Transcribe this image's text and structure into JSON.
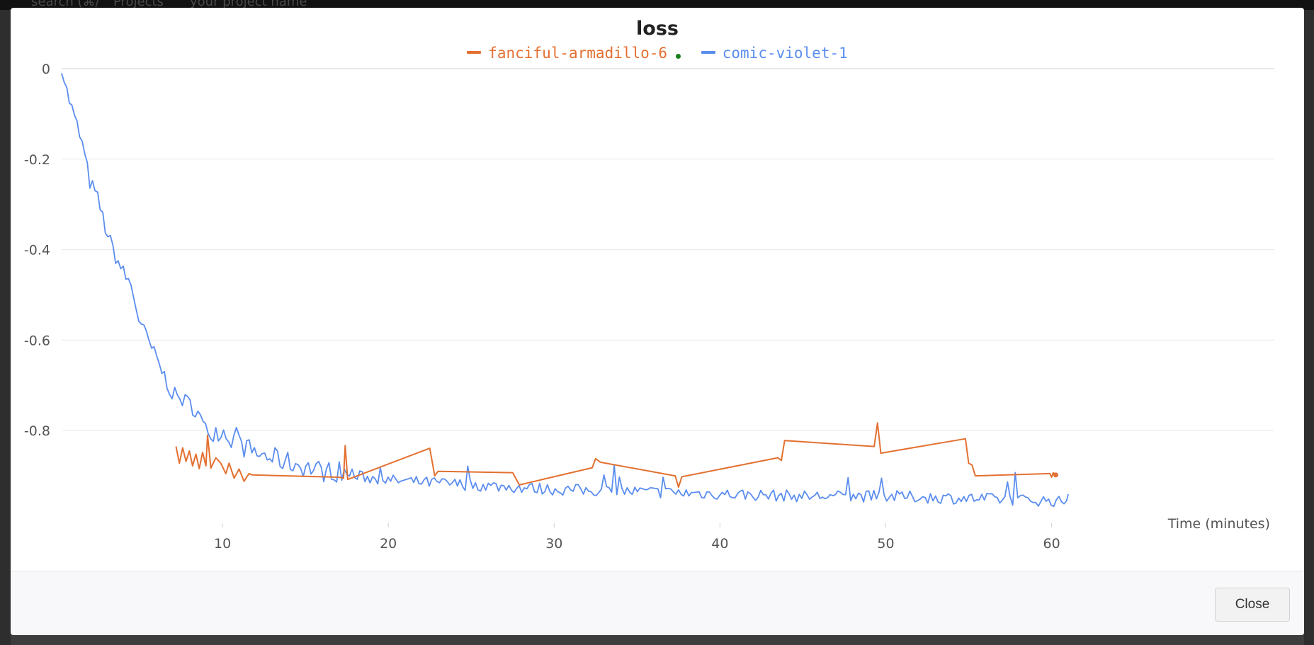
{
  "background_page": {
    "topbar_text": [
      "search (⌘/",
      "Projects",
      "your project name"
    ]
  },
  "dialog": {
    "close_label": "Close"
  },
  "colors": {
    "series_orange": "#e37030",
    "series_blue": "#5b8def",
    "live_dot": "#1a7f1a",
    "grid": "#ebebeb"
  },
  "chart_data": {
    "type": "line",
    "title": "loss",
    "xlabel": "Time (minutes)",
    "ylabel": "",
    "xlim": [
      0.3,
      61
    ],
    "ylim": [
      -1.0,
      0
    ],
    "xticks": [
      10,
      20,
      30,
      40,
      50,
      60
    ],
    "yticks": [
      0,
      -0.2,
      -0.4,
      -0.6,
      -0.8
    ],
    "grid": true,
    "legend_position": "top-center",
    "series": [
      {
        "name": "fanciful-armadillo-6",
        "color": "#e37030",
        "live": true,
        "points": [
          [
            7.2,
            -0.835
          ],
          [
            7.4,
            -0.872
          ],
          [
            7.6,
            -0.838
          ],
          [
            7.8,
            -0.868
          ],
          [
            8.0,
            -0.845
          ],
          [
            8.2,
            -0.878
          ],
          [
            8.4,
            -0.852
          ],
          [
            8.6,
            -0.884
          ],
          [
            8.8,
            -0.848
          ],
          [
            9.0,
            -0.878
          ],
          [
            9.1,
            -0.81
          ],
          [
            9.3,
            -0.883
          ],
          [
            9.6,
            -0.86
          ],
          [
            9.9,
            -0.872
          ],
          [
            10.2,
            -0.895
          ],
          [
            10.4,
            -0.872
          ],
          [
            10.7,
            -0.905
          ],
          [
            11.0,
            -0.885
          ],
          [
            11.3,
            -0.912
          ],
          [
            11.6,
            -0.895
          ],
          [
            11.8,
            -0.898
          ],
          [
            17.0,
            -0.903
          ],
          [
            17.3,
            -0.905
          ],
          [
            17.4,
            -0.833
          ],
          [
            17.55,
            -0.908
          ],
          [
            22.5,
            -0.839
          ],
          [
            22.8,
            -0.9
          ],
          [
            23.0,
            -0.89
          ],
          [
            27.5,
            -0.893
          ],
          [
            27.9,
            -0.92
          ],
          [
            32.3,
            -0.882
          ],
          [
            32.5,
            -0.862
          ],
          [
            32.8,
            -0.87
          ],
          [
            37.3,
            -0.9
          ],
          [
            37.5,
            -0.925
          ],
          [
            37.7,
            -0.902
          ],
          [
            43.5,
            -0.86
          ],
          [
            43.7,
            -0.866
          ],
          [
            43.9,
            -0.822
          ],
          [
            49.3,
            -0.835
          ],
          [
            49.5,
            -0.783
          ],
          [
            49.7,
            -0.85
          ],
          [
            54.8,
            -0.818
          ],
          [
            55.0,
            -0.872
          ],
          [
            55.2,
            -0.876
          ],
          [
            55.4,
            -0.9
          ],
          [
            59.9,
            -0.895
          ],
          [
            60.0,
            -0.903
          ],
          [
            60.1,
            -0.893
          ],
          [
            60.25,
            -0.898
          ]
        ]
      },
      {
        "name": "comic-violet-1",
        "color": "#5b8def",
        "live": false,
        "keypoints": [
          [
            0.3,
            -0.01
          ],
          [
            1.0,
            -0.1
          ],
          [
            1.5,
            -0.16
          ],
          [
            2.0,
            -0.25
          ],
          [
            2.5,
            -0.29
          ],
          [
            3.0,
            -0.36
          ],
          [
            3.5,
            -0.41
          ],
          [
            4.0,
            -0.45
          ],
          [
            4.5,
            -0.48
          ],
          [
            5.0,
            -0.56
          ],
          [
            6.0,
            -0.64
          ],
          [
            7.0,
            -0.72
          ],
          [
            8.0,
            -0.74
          ],
          [
            8.5,
            -0.76
          ],
          [
            9.0,
            -0.8
          ],
          [
            10.0,
            -0.8
          ],
          [
            11.0,
            -0.83
          ],
          [
            12.0,
            -0.85
          ],
          [
            13.0,
            -0.86
          ],
          [
            14.0,
            -0.87
          ],
          [
            15.0,
            -0.88
          ],
          [
            16.0,
            -0.89
          ],
          [
            17.0,
            -0.89
          ],
          [
            18.0,
            -0.9
          ],
          [
            20.0,
            -0.91
          ],
          [
            25.0,
            -0.92
          ],
          [
            30.0,
            -0.93
          ],
          [
            35.0,
            -0.935
          ],
          [
            40.0,
            -0.94
          ],
          [
            45.0,
            -0.945
          ],
          [
            50.0,
            -0.945
          ],
          [
            55.0,
            -0.95
          ],
          [
            60.0,
            -0.955
          ],
          [
            60.8,
            -0.96
          ],
          [
            61.0,
            -0.94
          ]
        ]
      }
    ]
  }
}
